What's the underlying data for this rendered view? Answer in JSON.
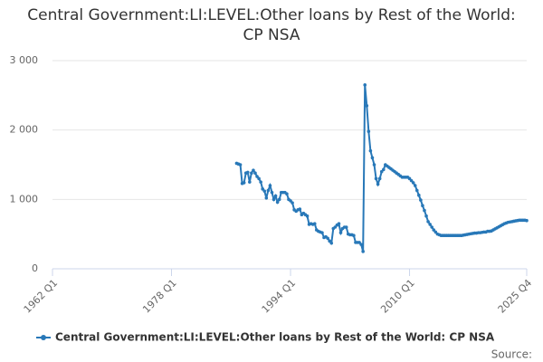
{
  "chart_data": {
    "type": "line",
    "title": "Central Government:LI:LEVEL:Other loans by Rest of the World: CP NSA",
    "source": "Source:",
    "x": [
      "1986 Q4",
      "1987 Q1",
      "1987 Q2",
      "1987 Q3",
      "1987 Q4",
      "1988 Q1",
      "1988 Q2",
      "1988 Q3",
      "1988 Q4",
      "1989 Q1",
      "1989 Q2",
      "1989 Q3",
      "1989 Q4",
      "1990 Q1",
      "1990 Q2",
      "1990 Q3",
      "1990 Q4",
      "1991 Q1",
      "1991 Q2",
      "1991 Q3",
      "1991 Q4",
      "1992 Q1",
      "1992 Q2",
      "1992 Q3",
      "1992 Q4",
      "1993 Q1",
      "1993 Q2",
      "1993 Q3",
      "1993 Q4",
      "1994 Q1",
      "1994 Q2",
      "1994 Q3",
      "1994 Q4",
      "1995 Q1",
      "1995 Q2",
      "1995 Q3",
      "1995 Q4",
      "1996 Q1",
      "1996 Q2",
      "1996 Q3",
      "1996 Q4",
      "1997 Q1",
      "1997 Q2",
      "1997 Q3",
      "1997 Q4",
      "1998 Q1",
      "1998 Q2",
      "1998 Q3",
      "1998 Q4",
      "1999 Q1",
      "1999 Q2",
      "1999 Q3",
      "1999 Q4",
      "2000 Q1",
      "2000 Q2",
      "2000 Q3",
      "2000 Q4",
      "2001 Q1",
      "2001 Q2",
      "2001 Q3",
      "2001 Q4",
      "2002 Q1",
      "2002 Q2",
      "2002 Q3",
      "2002 Q4",
      "2003 Q1",
      "2003 Q2",
      "2003 Q3",
      "2003 Q4",
      "2004 Q1",
      "2004 Q2",
      "2004 Q3",
      "2004 Q4",
      "2005 Q1",
      "2005 Q2",
      "2005 Q3",
      "2005 Q4",
      "2006 Q1",
      "2006 Q2",
      "2006 Q3",
      "2006 Q4",
      "2007 Q1",
      "2007 Q2",
      "2007 Q3",
      "2007 Q4",
      "2008 Q1",
      "2008 Q2",
      "2008 Q3",
      "2008 Q4",
      "2009 Q1",
      "2009 Q2",
      "2009 Q3",
      "2009 Q4",
      "2010 Q1",
      "2010 Q2",
      "2010 Q3",
      "2010 Q4",
      "2011 Q1",
      "2011 Q2",
      "2011 Q3",
      "2011 Q4",
      "2012 Q1",
      "2012 Q2",
      "2012 Q3",
      "2012 Q4",
      "2013 Q1",
      "2013 Q2",
      "2013 Q3",
      "2013 Q4",
      "2014 Q1",
      "2014 Q2",
      "2014 Q3",
      "2014 Q4",
      "2015 Q1",
      "2015 Q2",
      "2015 Q3",
      "2015 Q4",
      "2016 Q1",
      "2016 Q2",
      "2016 Q3",
      "2016 Q4",
      "2017 Q1",
      "2017 Q2",
      "2017 Q3",
      "2017 Q4",
      "2018 Q1",
      "2018 Q2",
      "2018 Q3",
      "2018 Q4",
      "2019 Q1",
      "2019 Q2",
      "2019 Q3",
      "2019 Q4",
      "2020 Q1",
      "2020 Q2",
      "2020 Q3",
      "2020 Q4",
      "2021 Q1",
      "2021 Q2",
      "2021 Q3",
      "2021 Q4",
      "2022 Q1",
      "2022 Q2",
      "2022 Q3",
      "2022 Q4",
      "2023 Q1",
      "2023 Q2",
      "2023 Q3",
      "2023 Q4",
      "2024 Q1",
      "2024 Q2",
      "2024 Q3",
      "2024 Q4",
      "2025 Q1",
      "2025 Q2",
      "2025 Q3",
      "2025 Q4"
    ],
    "series": [
      {
        "name": "Central Government:LI:LEVEL:Other loans by Rest of the World: CP NSA",
        "color": "#2878b8",
        "values": [
          1520,
          1510,
          1500,
          1230,
          1240,
          1380,
          1390,
          1250,
          1380,
          1420,
          1380,
          1330,
          1300,
          1250,
          1150,
          1120,
          1020,
          1130,
          1200,
          1100,
          1000,
          1050,
          960,
          1000,
          1100,
          1100,
          1100,
          1080,
          1000,
          980,
          950,
          850,
          830,
          850,
          860,
          780,
          800,
          780,
          760,
          640,
          650,
          640,
          650,
          560,
          540,
          530,
          520,
          450,
          460,
          440,
          400,
          370,
          580,
          600,
          630,
          650,
          520,
          580,
          600,
          600,
          500,
          490,
          490,
          480,
          380,
          380,
          380,
          350,
          250,
          2650,
          2350,
          1980,
          1700,
          1600,
          1500,
          1300,
          1220,
          1300,
          1400,
          1430,
          1500,
          1480,
          1460,
          1440,
          1420,
          1400,
          1380,
          1360,
          1340,
          1320,
          1320,
          1320,
          1320,
          1300,
          1270,
          1240,
          1200,
          1130,
          1060,
          990,
          910,
          840,
          760,
          680,
          640,
          600,
          560,
          530,
          500,
          490,
          480,
          480,
          480,
          480,
          480,
          480,
          480,
          480,
          480,
          480,
          480,
          480,
          485,
          490,
          495,
          500,
          505,
          510,
          515,
          515,
          520,
          520,
          525,
          530,
          530,
          540,
          540,
          545,
          560,
          575,
          590,
          605,
          620,
          635,
          650,
          660,
          670,
          675,
          680,
          685,
          690,
          695,
          700,
          700,
          700,
          700,
          695
        ]
      }
    ],
    "xlim": [
      "1962 Q1",
      "2025 Q4"
    ],
    "xticks": [
      "1962 Q1",
      "1978 Q1",
      "1994 Q1",
      "2010 Q1",
      "2025 Q4"
    ],
    "ylim": [
      0,
      3000
    ],
    "yticks": [
      0,
      {
        "value": 1000,
        "label": "1 000"
      },
      {
        "value": 2000,
        "label": "2 000"
      },
      {
        "value": 3000,
        "label": "3 000"
      }
    ],
    "grid": true,
    "legend": "bottom"
  }
}
